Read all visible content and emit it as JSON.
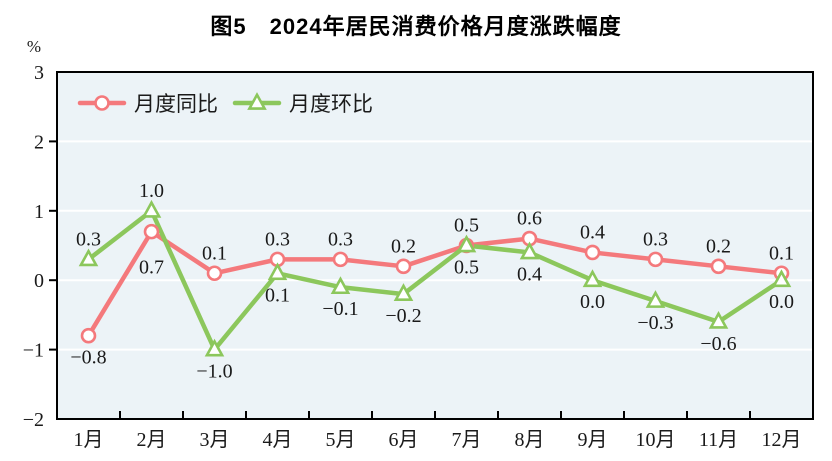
{
  "chart_data": {
    "type": "line",
    "title": "图5　2024年居民消费价格月度涨跌幅度",
    "ylabel": "%",
    "xlabel": "",
    "ylim": [
      -2,
      3
    ],
    "yticks": [
      3,
      2,
      1,
      0,
      -1,
      -2
    ],
    "grid": true,
    "legend_position": "top-left-inside",
    "plot_bg": "#ECF3F7",
    "grid_color": "#FFFFFF",
    "axis_color": "#000000",
    "label_color": "#1A1A1A",
    "categories": [
      "1月",
      "2月",
      "3月",
      "4月",
      "5月",
      "6月",
      "7月",
      "8月",
      "9月",
      "10月",
      "11月",
      "12月"
    ],
    "series": [
      {
        "id": "yoy",
        "name": "月度同比",
        "color": "#F4797C",
        "marker": "circle",
        "values": [
          -0.8,
          0.7,
          0.1,
          0.3,
          0.3,
          0.2,
          0.5,
          0.6,
          0.4,
          0.3,
          0.2,
          0.1
        ],
        "label_positions": [
          "below",
          "below-far",
          "above",
          "above",
          "above",
          "above",
          "above",
          "above",
          "above",
          "above",
          "above",
          "above"
        ]
      },
      {
        "id": "mom",
        "name": "月度环比",
        "color": "#8CC75C",
        "marker": "triangle",
        "values": [
          0.3,
          1.0,
          -1.0,
          0.1,
          -0.1,
          -0.2,
          0.5,
          0.4,
          0.0,
          -0.3,
          -0.6,
          0.0
        ],
        "label_positions": [
          "above",
          "above",
          "below",
          "below",
          "below",
          "below",
          "below",
          "below",
          "below",
          "below",
          "below",
          "below"
        ]
      }
    ]
  }
}
